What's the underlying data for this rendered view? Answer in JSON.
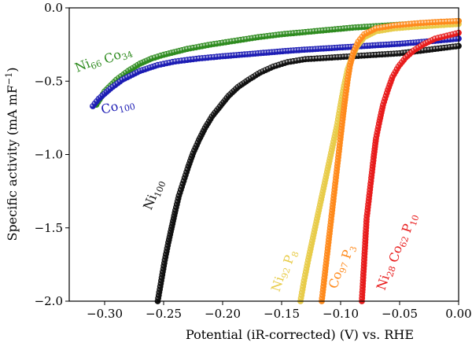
{
  "chart_data": {
    "type": "scatter",
    "xlabel": "Potential (iR-corrected) (V) vs. RHE",
    "ylabel": "Specific activity (mA mF",
    "ylabel_sup": "−1",
    "ylabel_end": ")",
    "xlim": [
      -0.33,
      0.0
    ],
    "ylim": [
      -2.0,
      0.0
    ],
    "x_ticks": [
      -0.3,
      -0.25,
      -0.2,
      -0.15,
      -0.1,
      -0.05,
      0.0
    ],
    "x_tick_labels": [
      "−0.30",
      "−0.25",
      "−0.20",
      "−0.15",
      "−0.10",
      "−0.05",
      "0.00"
    ],
    "y_ticks": [
      0.0,
      -0.5,
      -1.0,
      -1.5,
      -2.0
    ],
    "y_tick_labels": [
      "0.0",
      "−0.5",
      "−1.0",
      "−1.5",
      "−2.0"
    ],
    "grid": false,
    "legend": "none",
    "series": [
      {
        "name_parts": [
          [
            "Ni",
            "66"
          ],
          [
            " Co",
            "34"
          ]
        ],
        "color": "#2e8b1f",
        "points": [
          [
            -0.307,
            -0.66
          ],
          [
            -0.3,
            -0.57
          ],
          [
            -0.29,
            -0.49
          ],
          [
            -0.28,
            -0.43
          ],
          [
            -0.27,
            -0.38
          ],
          [
            -0.26,
            -0.345
          ],
          [
            -0.25,
            -0.32
          ],
          [
            -0.23,
            -0.28
          ],
          [
            -0.21,
            -0.25
          ],
          [
            -0.19,
            -0.225
          ],
          [
            -0.17,
            -0.2
          ],
          [
            -0.15,
            -0.18
          ],
          [
            -0.13,
            -0.165
          ],
          [
            -0.11,
            -0.15
          ],
          [
            -0.09,
            -0.135
          ],
          [
            -0.07,
            -0.125
          ],
          [
            -0.05,
            -0.115
          ],
          [
            -0.03,
            -0.105
          ],
          [
            -0.01,
            -0.095
          ],
          [
            0.0,
            -0.09
          ]
        ]
      },
      {
        "name_parts": [
          [
            "Co",
            "100"
          ]
        ],
        "color": "#1c1cb4",
        "points": [
          [
            -0.31,
            -0.67
          ],
          [
            -0.305,
            -0.62
          ],
          [
            -0.295,
            -0.55
          ],
          [
            -0.285,
            -0.49
          ],
          [
            -0.27,
            -0.43
          ],
          [
            -0.255,
            -0.39
          ],
          [
            -0.24,
            -0.365
          ],
          [
            -0.22,
            -0.345
          ],
          [
            -0.2,
            -0.33
          ],
          [
            -0.17,
            -0.31
          ],
          [
            -0.14,
            -0.29
          ],
          [
            -0.11,
            -0.275
          ],
          [
            -0.08,
            -0.26
          ],
          [
            -0.05,
            -0.245
          ],
          [
            -0.02,
            -0.225
          ],
          [
            0.0,
            -0.21
          ]
        ]
      },
      {
        "name_parts": [
          [
            "Ni",
            "100"
          ]
        ],
        "color": "#111111",
        "points": [
          [
            -0.255,
            -2.0
          ],
          [
            -0.252,
            -1.86
          ],
          [
            -0.249,
            -1.72
          ],
          [
            -0.246,
            -1.6
          ],
          [
            -0.243,
            -1.49
          ],
          [
            -0.24,
            -1.38
          ],
          [
            -0.237,
            -1.28
          ],
          [
            -0.233,
            -1.18
          ],
          [
            -0.229,
            -1.08
          ],
          [
            -0.225,
            -0.99
          ],
          [
            -0.22,
            -0.9
          ],
          [
            -0.215,
            -0.82
          ],
          [
            -0.209,
            -0.74
          ],
          [
            -0.202,
            -0.67
          ],
          [
            -0.195,
            -0.6
          ],
          [
            -0.187,
            -0.54
          ],
          [
            -0.178,
            -0.49
          ],
          [
            -0.168,
            -0.44
          ],
          [
            -0.157,
            -0.4
          ],
          [
            -0.145,
            -0.37
          ],
          [
            -0.13,
            -0.35
          ],
          [
            -0.11,
            -0.34
          ],
          [
            -0.09,
            -0.33
          ],
          [
            -0.07,
            -0.32
          ],
          [
            -0.05,
            -0.31
          ],
          [
            -0.03,
            -0.29
          ],
          [
            -0.01,
            -0.27
          ],
          [
            0.0,
            -0.26
          ]
        ]
      },
      {
        "name_parts": [
          [
            "Ni",
            "92"
          ],
          [
            " P",
            "8"
          ]
        ],
        "color": "#e8cc4a",
        "points": [
          [
            -0.134,
            -2.0
          ],
          [
            -0.131,
            -1.86
          ],
          [
            -0.127,
            -1.7
          ],
          [
            -0.123,
            -1.55
          ],
          [
            -0.119,
            -1.4
          ],
          [
            -0.115,
            -1.25
          ],
          [
            -0.111,
            -1.1
          ],
          [
            -0.107,
            -0.95
          ],
          [
            -0.103,
            -0.8
          ],
          [
            -0.1,
            -0.66
          ],
          [
            -0.097,
            -0.53
          ],
          [
            -0.094,
            -0.42
          ],
          [
            -0.09,
            -0.33
          ],
          [
            -0.086,
            -0.26
          ],
          [
            -0.08,
            -0.2
          ],
          [
            -0.07,
            -0.16
          ],
          [
            -0.055,
            -0.14
          ],
          [
            -0.04,
            -0.13
          ],
          [
            -0.02,
            -0.12
          ],
          [
            0.0,
            -0.11
          ]
        ]
      },
      {
        "name_parts": [
          [
            "Co",
            "97"
          ],
          [
            " P",
            "3"
          ]
        ],
        "color": "#ff8a1c",
        "points": [
          [
            -0.116,
            -2.0
          ],
          [
            -0.114,
            -1.86
          ],
          [
            -0.112,
            -1.72
          ],
          [
            -0.11,
            -1.58
          ],
          [
            -0.108,
            -1.44
          ],
          [
            -0.106,
            -1.3
          ],
          [
            -0.104,
            -1.16
          ],
          [
            -0.102,
            -1.02
          ],
          [
            -0.1,
            -0.88
          ],
          [
            -0.098,
            -0.74
          ],
          [
            -0.096,
            -0.61
          ],
          [
            -0.094,
            -0.49
          ],
          [
            -0.092,
            -0.39
          ],
          [
            -0.089,
            -0.3
          ],
          [
            -0.085,
            -0.23
          ],
          [
            -0.08,
            -0.18
          ],
          [
            -0.07,
            -0.14
          ],
          [
            -0.055,
            -0.12
          ],
          [
            -0.035,
            -0.105
          ],
          [
            -0.015,
            -0.095
          ],
          [
            0.0,
            -0.09
          ]
        ]
      },
      {
        "name_parts": [
          [
            "Ni",
            "28"
          ],
          [
            " Co",
            "62"
          ],
          [
            " P",
            "10"
          ]
        ],
        "color": "#e81c1c",
        "points": [
          [
            -0.082,
            -2.0
          ],
          [
            -0.081,
            -1.86
          ],
          [
            -0.08,
            -1.72
          ],
          [
            -0.079,
            -1.58
          ],
          [
            -0.078,
            -1.44
          ],
          [
            -0.076,
            -1.3
          ],
          [
            -0.074,
            -1.16
          ],
          [
            -0.072,
            -1.02
          ],
          [
            -0.07,
            -0.89
          ],
          [
            -0.067,
            -0.77
          ],
          [
            -0.064,
            -0.66
          ],
          [
            -0.06,
            -0.56
          ],
          [
            -0.056,
            -0.47
          ],
          [
            -0.051,
            -0.4
          ],
          [
            -0.045,
            -0.34
          ],
          [
            -0.038,
            -0.29
          ],
          [
            -0.03,
            -0.25
          ],
          [
            -0.02,
            -0.21
          ],
          [
            -0.01,
            -0.19
          ],
          [
            0.0,
            -0.17
          ]
        ]
      }
    ]
  }
}
